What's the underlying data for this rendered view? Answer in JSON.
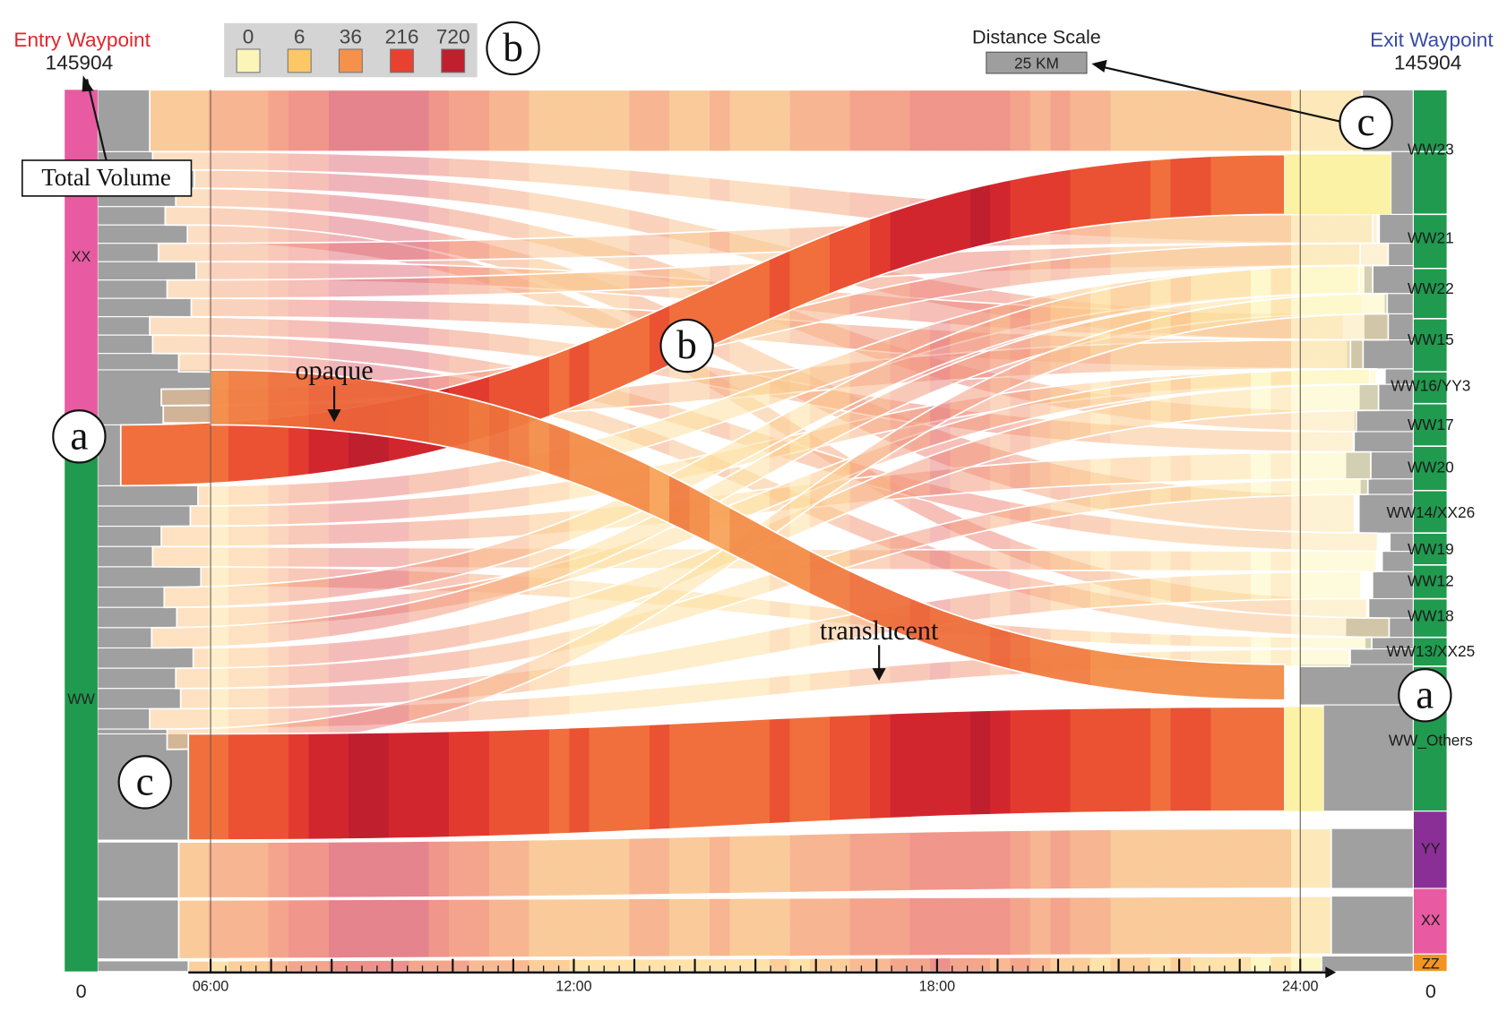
{
  "entry": {
    "title": "Entry Waypoint",
    "total": "145904",
    "bottom_value": "0",
    "title_color": "#e0262b"
  },
  "exit": {
    "title": "Exit Waypoint",
    "total": "145904",
    "bottom_value": "0",
    "title_color": "#3a4aa8"
  },
  "legend": {
    "values": [
      "0",
      "6",
      "36",
      "216",
      "720"
    ],
    "colors": [
      "#fbf6b8",
      "#fcc865",
      "#f5914a",
      "#e9412f",
      "#c01f2e"
    ]
  },
  "distance_scale": {
    "title": "Distance Scale",
    "value": "25 KM"
  },
  "entry_groups": [
    {
      "label": "XX",
      "color": "#e85aa1"
    },
    {
      "label": "WW",
      "color": "#1f9a4f"
    }
  ],
  "exit_groups": [
    {
      "label": "WW",
      "color": "#1f9a4f"
    },
    {
      "label": "YY",
      "color": "#8a2f95"
    },
    {
      "label": "XX",
      "color": "#e85aa1"
    },
    {
      "label": "ZZ",
      "color": "#f39322"
    }
  ],
  "exit_waypoints": [
    "WW23",
    "WW21",
    "WW22",
    "WW15",
    "WW16/YY3",
    "WW17",
    "WW20",
    "WW14/XX26",
    "WW19",
    "WW12",
    "WW18",
    "WW13/XX25",
    "WW_Others",
    "YY",
    "XX",
    "ZZ"
  ],
  "time_axis": {
    "labels": [
      "06:00",
      "12:00",
      "18:00",
      "24:00"
    ]
  },
  "annotations": {
    "total_volume": "Total Volume",
    "opaque": "opaque",
    "translucent": "translucent",
    "marker_a": "a",
    "marker_b": "b",
    "marker_c": "c"
  }
}
